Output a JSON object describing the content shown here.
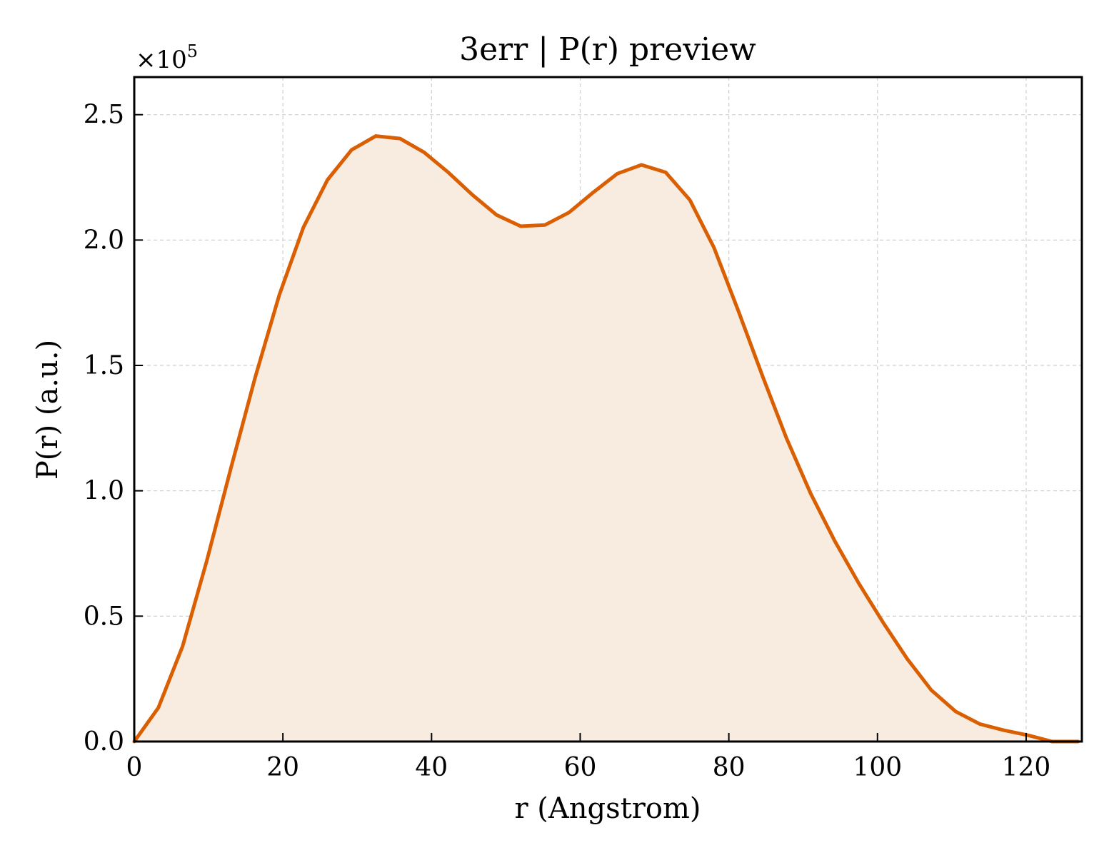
{
  "chart_data": {
    "type": "area",
    "title": "3err | P(r) preview",
    "xlabel": "r (Angstrom)",
    "ylabel": "P(r) (a.u.)",
    "y_scale_label": "×10",
    "y_scale_exponent": "5",
    "xlim": [
      0,
      127.5
    ],
    "ylim": [
      0,
      2.65
    ],
    "xticks": [
      0,
      20,
      40,
      60,
      80,
      100,
      120
    ],
    "xtick_labels": [
      "0",
      "20",
      "40",
      "60",
      "80",
      "100",
      "120"
    ],
    "yticks": [
      0.0,
      0.5,
      1.0,
      1.5,
      2.0,
      2.5
    ],
    "ytick_labels": [
      "0.0",
      "0.5",
      "1.0",
      "1.5",
      "2.0",
      "2.5"
    ],
    "grid": true,
    "line_color": "#d95f02",
    "fill_color": "#f8ebe0",
    "series": [
      {
        "x": [
          0,
          3.25,
          6.5,
          9.75,
          13.0,
          16.25,
          19.5,
          22.75,
          26.0,
          29.25,
          32.5,
          35.75,
          39.0,
          42.25,
          45.5,
          48.75,
          52.0,
          55.25,
          58.5,
          61.75,
          65.0,
          68.25,
          71.5,
          74.75,
          78.0,
          81.25,
          84.5,
          87.75,
          91.0,
          94.25,
          97.5,
          100.75,
          104.0,
          107.25,
          110.5,
          113.75,
          117.0,
          120.25,
          123.5,
          127.0
        ],
        "y": [
          0.0,
          0.135,
          0.38,
          0.72,
          1.09,
          1.45,
          1.78,
          2.05,
          2.24,
          2.36,
          2.415,
          2.405,
          2.35,
          2.27,
          2.18,
          2.1,
          2.055,
          2.06,
          2.11,
          2.19,
          2.265,
          2.3,
          2.27,
          2.16,
          1.97,
          1.72,
          1.46,
          1.21,
          0.99,
          0.8,
          0.63,
          0.475,
          0.33,
          0.205,
          0.12,
          0.07,
          0.045,
          0.025,
          0.0,
          0.0
        ]
      }
    ]
  }
}
